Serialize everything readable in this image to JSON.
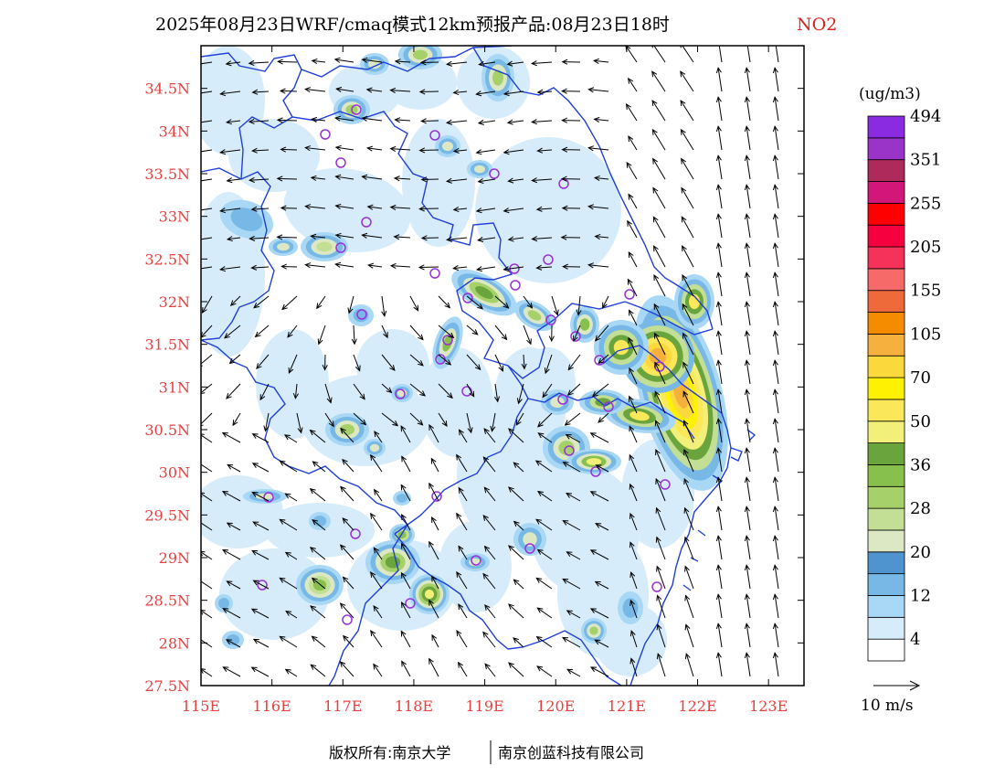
{
  "map": {
    "title": "2025年08月23日WRF/cmaq模式12km预报产品:08月23日18时",
    "variable": "NO2",
    "lon_range": [
      115,
      123.5
    ],
    "lat_range": [
      27.5,
      35
    ],
    "lon_ticks": [
      "115E",
      "116E",
      "117E",
      "118E",
      "119E",
      "120E",
      "121E",
      "122E",
      "123E"
    ],
    "lat_ticks": [
      "27.5N",
      "28N",
      "28.5N",
      "29N",
      "29.5N",
      "30N",
      "30.5N",
      "31N",
      "31.5N",
      "32N",
      "32.5N",
      "33N",
      "33.5N",
      "34N",
      "34.5N"
    ],
    "boundary_color": "#1f3fd8",
    "station_color": "#9b30d9",
    "colorbar": {
      "unit": "(ug/m3)",
      "colors": [
        "#ffffff",
        "#d6ecfa",
        "#a8d8f5",
        "#78b8e6",
        "#4f94cf",
        "#dce8c4",
        "#c2df95",
        "#a6d06a",
        "#88c04e",
        "#6aa43c",
        "#f3f07a",
        "#fbe85a",
        "#fff200",
        "#fbd93d",
        "#f6b03d",
        "#f58c00",
        "#ee6a3a",
        "#f76a6a",
        "#f5335a",
        "#f70040",
        "#ff0000",
        "#d2167a",
        "#ad2a5a",
        "#9a34c8",
        "#8a2be2"
      ],
      "labels": [
        "4",
        "12",
        "20",
        "28",
        "36",
        "50",
        "70",
        "105",
        "155",
        "205",
        "255",
        "351",
        "494"
      ]
    },
    "wind_legend": "10 m/s",
    "footer": {
      "left": "版权所有:南京大学",
      "right": "南京创蓝科技有限公司"
    }
  }
}
